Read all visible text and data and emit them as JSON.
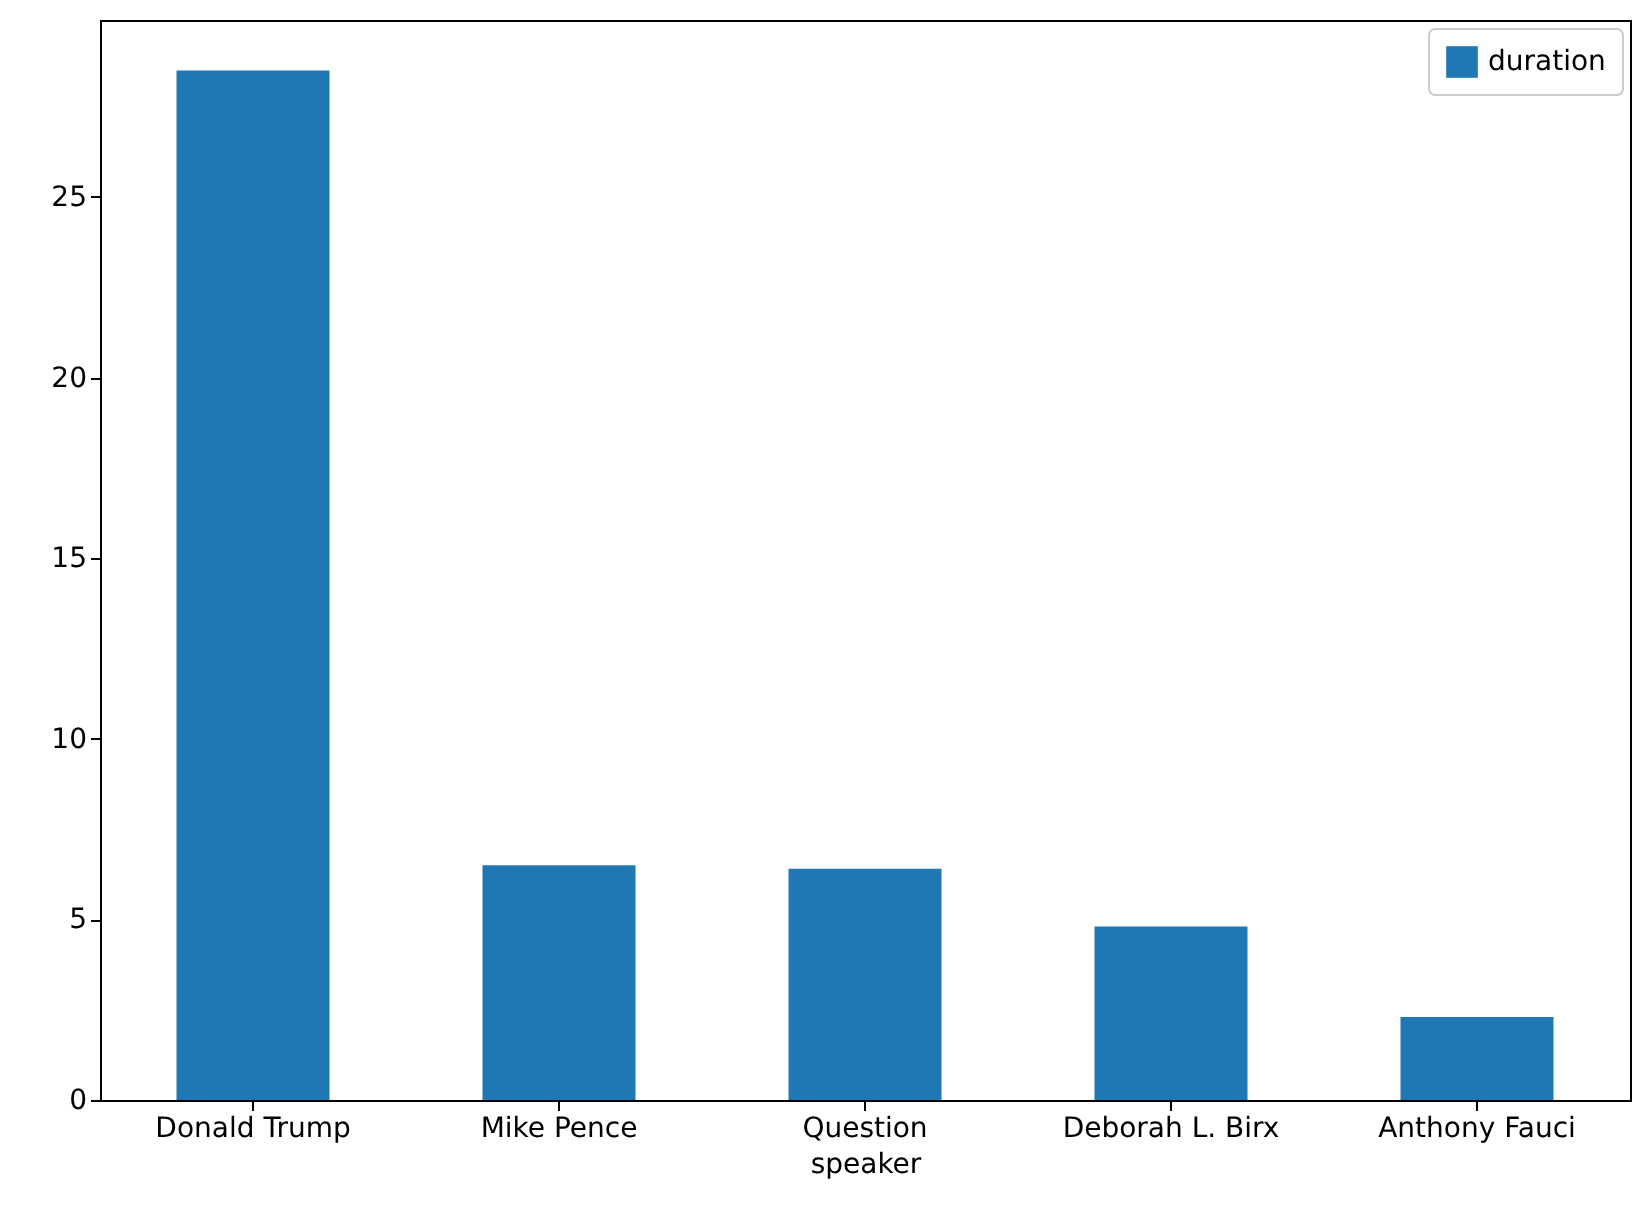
{
  "chart_data": {
    "type": "bar",
    "xlabel": "speaker",
    "categories": [
      "Donald Trump",
      "Mike Pence",
      "Question",
      "Deborah L. Birx",
      "Anthony Fauci"
    ],
    "series": [
      {
        "name": "duration",
        "color": "#1f77b4",
        "values": [
          28.5,
          6.5,
          6.4,
          4.8,
          2.3
        ]
      }
    ],
    "ylim": [
      0,
      29.9
    ],
    "yticks": [
      0,
      5,
      10,
      15,
      20,
      25
    ],
    "grid": false,
    "legend": "top right"
  }
}
